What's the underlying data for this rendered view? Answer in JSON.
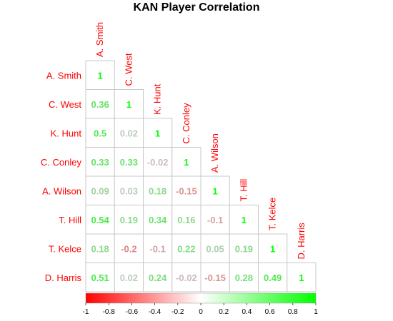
{
  "chart_data": {
    "type": "heatmap",
    "title": "KAN Player Correlation",
    "players": [
      "A. Smith",
      "C. West",
      "K. Hunt",
      "C. Conley",
      "A. Wilson",
      "T. Hill",
      "T. Kelce",
      "D. Harris"
    ],
    "matrix": [
      [
        1
      ],
      [
        0.36,
        1
      ],
      [
        0.5,
        0.02,
        1
      ],
      [
        0.33,
        0.33,
        -0.02,
        1
      ],
      [
        0.09,
        0.03,
        0.18,
        -0.15,
        1
      ],
      [
        0.54,
        0.19,
        0.34,
        0.16,
        -0.1,
        1
      ],
      [
        0.18,
        -0.2,
        -0.1,
        0.22,
        0.05,
        0.19,
        1
      ],
      [
        0.51,
        0.02,
        0.24,
        -0.02,
        -0.15,
        0.28,
        0.49,
        1
      ]
    ],
    "colorbar": {
      "range": [
        -1,
        1
      ],
      "ticks": [
        "-1",
        "-0.8",
        "-0.6",
        "-0.4",
        "-0.2",
        "0",
        "0.2",
        "0.4",
        "0.6",
        "0.8",
        "1"
      ],
      "low_color": "#ff0000",
      "mid_color": "#ffffff",
      "high_color": "#00ff00"
    },
    "layout": "lower-triangle",
    "label_color": "#ff0000"
  }
}
